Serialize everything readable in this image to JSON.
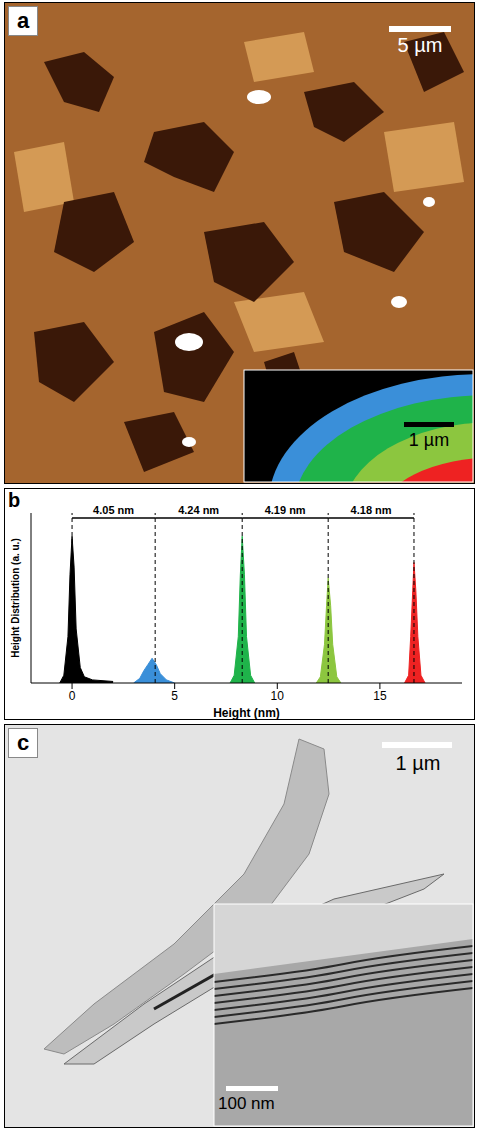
{
  "panel_labels": [
    "a",
    "b",
    "c"
  ],
  "panel_a": {
    "scale_bar": "5 µm",
    "inset_scale_bar": "1 µm"
  },
  "chart_data": {
    "type": "area",
    "x_label": "Height (nm)",
    "y_label": "Height Distribution (a. u.)",
    "xlim": [
      -2,
      19
    ],
    "xticks": [
      0,
      5,
      10,
      15
    ],
    "ylim": [
      0,
      1.1
    ],
    "tick_labels": "x",
    "peaks": [
      0,
      4.05,
      8.29,
      12.48,
      16.66
    ],
    "annotations": [
      {
        "text": "4.05 nm",
        "from": 0,
        "to": 4.05
      },
      {
        "text": "4.24 nm",
        "from": 4.05,
        "to": 8.29
      },
      {
        "text": "4.19 nm",
        "from": 8.29,
        "to": 12.48
      },
      {
        "text": "4.18 nm",
        "from": 12.48,
        "to": 16.66
      }
    ],
    "series": [
      {
        "color": "#000000",
        "x": [
          -0.6,
          -0.4,
          -0.2,
          -0.1,
          0,
          0.1,
          0.2,
          0.4,
          0.6,
          1,
          2
        ],
        "values": [
          0,
          0.05,
          0.3,
          0.7,
          0.95,
          0.75,
          0.35,
          0.1,
          0.04,
          0.02,
          0.01
        ]
      },
      {
        "color": "#3a8fd9",
        "x": [
          3.0,
          3.3,
          3.5,
          3.7,
          3.9,
          4.1,
          4.3,
          4.6,
          5.0
        ],
        "values": [
          0,
          0.03,
          0.08,
          0.12,
          0.16,
          0.12,
          0.06,
          0.02,
          0
        ]
      },
      {
        "color": "#1fb34a",
        "x": [
          7.7,
          7.9,
          8.1,
          8.2,
          8.29,
          8.4,
          8.5,
          8.7,
          8.9
        ],
        "values": [
          0,
          0.05,
          0.3,
          0.7,
          0.95,
          0.7,
          0.3,
          0.05,
          0
        ]
      },
      {
        "color": "#8cc63f",
        "x": [
          11.9,
          12.1,
          12.3,
          12.4,
          12.48,
          12.6,
          12.7,
          12.9,
          13.1
        ],
        "values": [
          0,
          0.04,
          0.25,
          0.5,
          0.68,
          0.5,
          0.25,
          0.04,
          0
        ]
      },
      {
        "color": "#ee2222",
        "x": [
          16.2,
          16.4,
          16.5,
          16.6,
          16.66,
          16.75,
          16.85,
          17.0,
          17.2
        ],
        "values": [
          0,
          0.05,
          0.3,
          0.6,
          0.78,
          0.6,
          0.3,
          0.05,
          0
        ]
      }
    ]
  },
  "panel_c": {
    "scale_bar": "1 µm",
    "inset_scale_bar": "100 nm"
  }
}
